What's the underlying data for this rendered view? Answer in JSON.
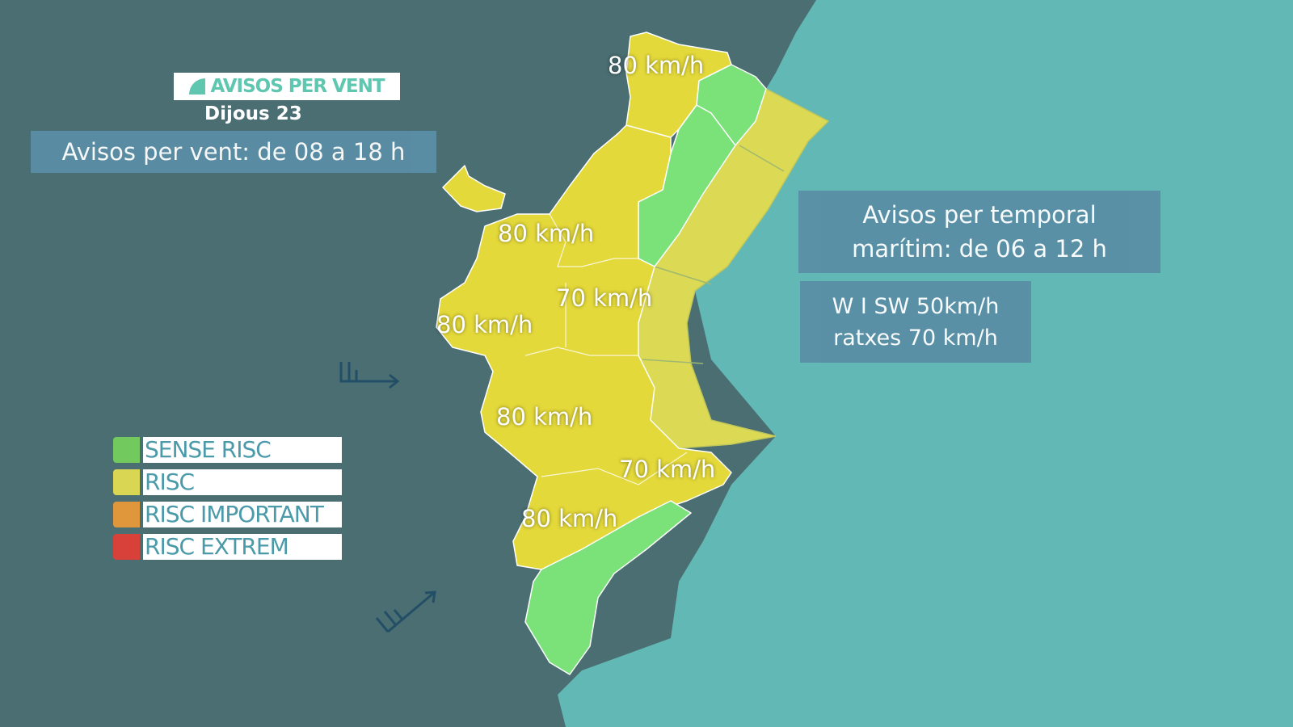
{
  "header": {
    "title": "AVISOS PER VENT",
    "day": "Dijous 23",
    "wind_period": "Avisos per vent: de 08 a 18 h"
  },
  "maritime": {
    "period_line1": "Avisos per temporal",
    "period_line2": "marítim: de 06 a 12 h",
    "wind_line1": "W I SW 50km/h",
    "wind_line2": "ratxes 70 km/h"
  },
  "zone_labels": [
    "80 km/h",
    "80 km/h",
    "70 km/h",
    "80 km/h",
    "80 km/h",
    "70 km/h",
    "80 km/h"
  ],
  "legend": [
    {
      "label": "SENSE RISC",
      "color": "#72c95e"
    },
    {
      "label": "RISC",
      "color": "#d9d654"
    },
    {
      "label": "RISC IMPORTANT",
      "color": "#e0963a"
    },
    {
      "label": "RISC EXTREM",
      "color": "#d8413a"
    }
  ],
  "colors": {
    "land": "#4a6e72",
    "sea": "#62b8b5",
    "risc": "#e4d93a",
    "sense_risc": "#7be27a",
    "sea_risc": "#dcd955"
  },
  "icons": [
    "wind-barb-west-icon",
    "wind-barb-southwest-icon"
  ]
}
